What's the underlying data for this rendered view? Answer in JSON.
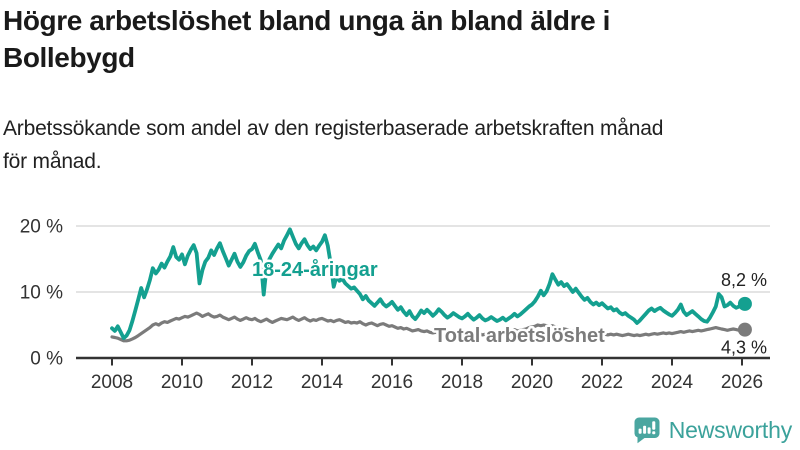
{
  "header": {
    "title_lines": [
      "Högre arbetslöshet bland unga än bland äldre i",
      "Bollebygd"
    ],
    "subtitle_lines": [
      "Arbetssökande som andel av den registerbaserade arbetskraften månad",
      "för månad."
    ]
  },
  "chart_data": {
    "type": "line",
    "x_unit": "monthly, decimal years",
    "x_start_year": 2008,
    "x_end_label_year": 2026,
    "x_ticks": [
      2008,
      2010,
      2012,
      2014,
      2016,
      2018,
      2020,
      2022,
      2024,
      2026
    ],
    "y_ticks": [
      {
        "value": 0,
        "label": "0 %"
      },
      {
        "value": 10,
        "label": "10 %"
      },
      {
        "value": 20,
        "label": "20 %"
      }
    ],
    "ylim": [
      0,
      21
    ],
    "grid": "horizontal",
    "legend_position": "inline-annotations",
    "axis_color": "#333333",
    "grid_color": "#dcdcdc",
    "series": [
      {
        "name": "18-24-åringar",
        "color": "#14a090",
        "end_label": "8,2 %",
        "end_value": 8.2,
        "values": [
          4.5,
          4.1,
          4.8,
          3.9,
          3.0,
          3.4,
          4.2,
          5.6,
          7.2,
          8.9,
          10.6,
          9.2,
          10.4,
          11.8,
          13.6,
          12.8,
          13.4,
          14.3,
          13.7,
          14.6,
          15.4,
          16.8,
          15.3,
          14.9,
          15.7,
          14.2,
          15.5,
          16.4,
          17.1,
          15.9,
          11.3,
          13.3,
          14.6,
          15.2,
          16.3,
          15.6,
          16.6,
          17.4,
          16.2,
          15.1,
          14.0,
          14.9,
          15.8,
          14.6,
          13.8,
          14.5,
          15.5,
          16.2,
          16.5,
          17.3,
          16.0,
          14.8,
          9.6,
          13.8,
          15.0,
          15.8,
          16.5,
          17.2,
          16.6,
          17.8,
          18.6,
          19.5,
          18.4,
          17.3,
          16.6,
          17.4,
          18.0,
          17.1,
          16.5,
          16.9,
          16.3,
          17.0,
          17.6,
          18.6,
          17.0,
          14.2,
          10.8,
          12.4,
          11.7,
          12.0,
          11.3,
          10.9,
          10.5,
          10.7,
          10.2,
          9.7,
          8.9,
          9.4,
          8.7,
          8.3,
          7.9,
          8.4,
          8.9,
          8.2,
          7.8,
          8.1,
          8.5,
          7.9,
          7.3,
          7.7,
          7.0,
          6.5,
          7.1,
          6.3,
          5.9,
          6.5,
          7.2,
          6.8,
          7.3,
          6.9,
          6.4,
          6.8,
          7.4,
          7.0,
          6.5,
          6.1,
          6.4,
          6.8,
          6.5,
          6.2,
          6.0,
          6.3,
          6.7,
          6.2,
          5.8,
          6.1,
          6.5,
          6.0,
          5.7,
          5.9,
          6.2,
          5.9,
          5.6,
          5.8,
          6.1,
          5.7,
          6.0,
          6.3,
          6.7,
          6.3,
          6.6,
          7.0,
          7.4,
          7.8,
          8.1,
          8.6,
          9.3,
          10.2,
          9.5,
          10.1,
          11.2,
          12.7,
          11.9,
          11.1,
          11.5,
          10.9,
          11.2,
          10.6,
          10.0,
          10.5,
          9.9,
          9.3,
          8.8,
          9.1,
          8.5,
          8.1,
          8.4,
          8.0,
          8.3,
          7.9,
          7.5,
          7.7,
          7.2,
          7.4,
          6.9,
          6.6,
          6.8,
          6.4,
          6.1,
          5.8,
          5.3,
          5.7,
          6.2,
          6.7,
          7.2,
          7.5,
          7.1,
          7.4,
          7.6,
          7.2,
          6.9,
          6.6,
          6.4,
          6.8,
          7.3,
          8.1,
          7.0,
          6.5,
          6.8,
          7.1,
          6.7,
          6.3,
          5.9,
          5.6,
          5.5,
          6.1,
          6.9,
          7.8,
          9.7,
          9.2,
          7.8,
          8.0,
          8.4,
          7.9,
          7.6,
          7.8,
          7.9,
          8.2
        ]
      },
      {
        "name": "Total arbetslöshet",
        "color": "#7b7b7b",
        "end_label": "4,3 %",
        "end_value": 4.3,
        "values": [
          3.2,
          3.1,
          3.0,
          2.8,
          2.6,
          2.6,
          2.7,
          2.9,
          3.1,
          3.4,
          3.7,
          4.0,
          4.3,
          4.6,
          5.0,
          5.2,
          5.0,
          5.3,
          5.5,
          5.4,
          5.6,
          5.8,
          6.0,
          5.9,
          6.1,
          6.3,
          6.2,
          6.4,
          6.6,
          6.8,
          6.6,
          6.3,
          6.5,
          6.7,
          6.4,
          6.2,
          6.3,
          6.5,
          6.2,
          6.0,
          5.8,
          6.0,
          6.2,
          5.9,
          5.7,
          5.9,
          6.1,
          5.9,
          5.8,
          6.0,
          5.7,
          5.5,
          5.7,
          5.9,
          5.6,
          5.4,
          5.6,
          5.8,
          6.0,
          5.9,
          5.8,
          6.0,
          6.2,
          5.9,
          5.7,
          5.9,
          6.1,
          5.8,
          5.6,
          5.8,
          5.7,
          5.9,
          6.0,
          5.8,
          5.6,
          5.7,
          5.5,
          5.7,
          5.8,
          5.6,
          5.4,
          5.5,
          5.3,
          5.4,
          5.3,
          5.5,
          5.2,
          5.0,
          5.2,
          5.3,
          5.1,
          4.9,
          5.1,
          5.2,
          5.0,
          4.8,
          4.9,
          4.7,
          4.5,
          4.6,
          4.4,
          4.5,
          4.3,
          4.1,
          4.2,
          4.3,
          4.1,
          4.0,
          4.1,
          3.9,
          3.8,
          3.9,
          3.7,
          3.8,
          3.9,
          3.7,
          3.6,
          3.7,
          3.8,
          3.6,
          3.7,
          3.8,
          3.6,
          3.5,
          3.6,
          3.8,
          3.7,
          3.5,
          3.6,
          3.7,
          3.9,
          3.8,
          3.9,
          4.0,
          3.8,
          3.9,
          4.0,
          4.1,
          4.3,
          4.1,
          4.2,
          4.3,
          4.4,
          4.6,
          4.7,
          4.8,
          5.0,
          4.9,
          5.0,
          4.9,
          4.8,
          4.9,
          4.7,
          4.6,
          4.5,
          4.4,
          4.3,
          4.2,
          4.1,
          4.0,
          3.9,
          3.8,
          3.9,
          3.8,
          3.7,
          3.8,
          3.7,
          3.6,
          3.7,
          3.6,
          3.5,
          3.6,
          3.5,
          3.6,
          3.5,
          3.4,
          3.5,
          3.6,
          3.5,
          3.4,
          3.5,
          3.4,
          3.5,
          3.6,
          3.5,
          3.6,
          3.7,
          3.6,
          3.7,
          3.8,
          3.7,
          3.8,
          3.7,
          3.8,
          3.9,
          4.0,
          3.9,
          4.0,
          4.1,
          4.0,
          4.1,
          4.2,
          4.1,
          4.2,
          4.3,
          4.4,
          4.5,
          4.6,
          4.5,
          4.4,
          4.3,
          4.2,
          4.3,
          4.4,
          4.3,
          4.2,
          4.2,
          4.3
        ]
      }
    ],
    "annotations": [
      {
        "text": "18-24-åringar",
        "series_index": 0
      },
      {
        "text": "Total arbetslöshet",
        "series_index": 1
      }
    ]
  },
  "footer": {
    "brand": "Newsworthy",
    "brand_color": "#3ba29b"
  }
}
